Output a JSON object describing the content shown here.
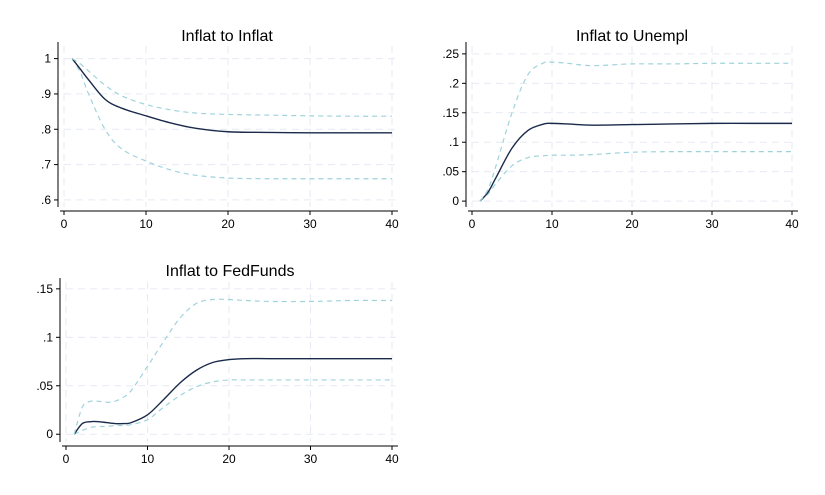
{
  "chart_data": [
    {
      "type": "line",
      "title": "Inflat to Inflat",
      "x": [
        1,
        2,
        3,
        5,
        7,
        10,
        13,
        16,
        20,
        25,
        30,
        35,
        40
      ],
      "xlim": [
        0,
        40
      ],
      "ylim": [
        0.58,
        1.03
      ],
      "xticks": [
        0,
        10,
        20,
        30,
        40
      ],
      "xtick_labels": [
        "0",
        "10",
        "20",
        "30",
        "40"
      ],
      "yticks": [
        0.6,
        0.7,
        0.8,
        0.9,
        1
      ],
      "ytick_labels": [
        ".6",
        ".7",
        ".8",
        ".9",
        "1"
      ],
      "grid": true,
      "series": [
        {
          "role": "lower",
          "color": "#9fd3dc",
          "style": "dashed",
          "values": [
            1.0,
            0.96,
            0.9,
            0.8,
            0.745,
            0.71,
            0.685,
            0.67,
            0.662,
            0.66,
            0.66,
            0.66,
            0.66
          ]
        },
        {
          "role": "estimate",
          "color": "#1a2a4a",
          "style": "solid",
          "values": [
            1.0,
            0.97,
            0.94,
            0.885,
            0.86,
            0.838,
            0.818,
            0.803,
            0.793,
            0.791,
            0.79,
            0.79,
            0.79
          ]
        },
        {
          "role": "upper",
          "color": "#9fd3dc",
          "style": "dashed",
          "values": [
            1.0,
            0.985,
            0.965,
            0.925,
            0.895,
            0.87,
            0.855,
            0.846,
            0.842,
            0.84,
            0.838,
            0.837,
            0.837
          ]
        }
      ]
    },
    {
      "type": "line",
      "title": "Inflat to Unempl",
      "x": [
        1,
        2,
        3,
        5,
        7,
        9,
        10,
        12,
        15,
        20,
        25,
        30,
        35,
        40
      ],
      "xlim": [
        0,
        40
      ],
      "ylim": [
        -0.01,
        0.26
      ],
      "xticks": [
        0,
        10,
        20,
        30,
        40
      ],
      "xtick_labels": [
        "0",
        "10",
        "20",
        "30",
        "40"
      ],
      "yticks": [
        0,
        0.05,
        0.1,
        0.15,
        0.2,
        0.25
      ],
      "ytick_labels": [
        "0",
        ".05",
        ".1",
        ".15",
        ".2",
        ".25"
      ],
      "grid": true,
      "series": [
        {
          "role": "lower",
          "color": "#9fd3dc",
          "style": "dashed",
          "values": [
            0.0,
            0.012,
            0.03,
            0.06,
            0.074,
            0.077,
            0.078,
            0.078,
            0.079,
            0.083,
            0.084,
            0.084,
            0.084,
            0.084
          ]
        },
        {
          "role": "estimate",
          "color": "#1a2a4a",
          "style": "solid",
          "values": [
            0.0,
            0.015,
            0.04,
            0.09,
            0.12,
            0.131,
            0.132,
            0.131,
            0.129,
            0.13,
            0.131,
            0.132,
            0.132,
            0.132
          ]
        },
        {
          "role": "upper",
          "color": "#9fd3dc",
          "style": "dashed",
          "values": [
            0.0,
            0.02,
            0.06,
            0.15,
            0.215,
            0.235,
            0.236,
            0.234,
            0.23,
            0.233,
            0.233,
            0.234,
            0.234,
            0.234
          ]
        }
      ]
    },
    {
      "type": "line",
      "title": "Inflat to FedFunds",
      "x": [
        1,
        2,
        3,
        4,
        5,
        6,
        7,
        8,
        10,
        12,
        14,
        16,
        18,
        20,
        22,
        25,
        30,
        35,
        40
      ],
      "xlim": [
        0,
        40
      ],
      "ylim": [
        -0.008,
        0.155
      ],
      "xticks": [
        0,
        10,
        20,
        30,
        40
      ],
      "xtick_labels": [
        "0",
        "10",
        "20",
        "30",
        "40"
      ],
      "yticks": [
        0,
        0.05,
        0.1,
        0.15
      ],
      "ytick_labels": [
        "0",
        ".05",
        ".1",
        ".15"
      ],
      "grid": true,
      "series": [
        {
          "role": "lower",
          "color": "#9fd3dc",
          "style": "dashed",
          "values": [
            0.0,
            0.004,
            0.007,
            0.008,
            0.008,
            0.009,
            0.009,
            0.01,
            0.015,
            0.028,
            0.04,
            0.049,
            0.054,
            0.056,
            0.056,
            0.056,
            0.056,
            0.056,
            0.056
          ]
        },
        {
          "role": "estimate",
          "color": "#1a2a4a",
          "style": "solid",
          "values": [
            0.0,
            0.011,
            0.013,
            0.013,
            0.012,
            0.011,
            0.011,
            0.012,
            0.02,
            0.036,
            0.053,
            0.066,
            0.074,
            0.077,
            0.078,
            0.078,
            0.078,
            0.078,
            0.078
          ]
        },
        {
          "role": "upper",
          "color": "#9fd3dc",
          "style": "dashed",
          "values": [
            0.0,
            0.028,
            0.034,
            0.034,
            0.033,
            0.034,
            0.038,
            0.045,
            0.07,
            0.096,
            0.12,
            0.135,
            0.139,
            0.139,
            0.138,
            0.137,
            0.137,
            0.138,
            0.138
          ]
        }
      ]
    }
  ]
}
